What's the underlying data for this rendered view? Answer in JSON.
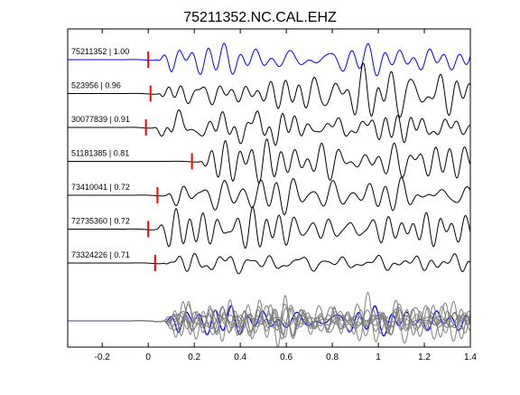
{
  "chart_data": {
    "type": "line",
    "title": "75211352.NC.CAL.EHZ",
    "xlim": [
      -0.35,
      1.4
    ],
    "xticks": [
      -0.2,
      0,
      0.2,
      0.4,
      0.6,
      0.8,
      1,
      1.2,
      1.4
    ],
    "xtick_labels": [
      "-0.2",
      "0",
      "0.2",
      "0.4",
      "0.6",
      "0.8",
      "1",
      "1.2",
      "1.4"
    ],
    "grid": false,
    "colors": {
      "master": "#0000ff",
      "trace": "#000000",
      "pick": "#ff0000",
      "stack": "#808080"
    },
    "traces": [
      {
        "label": "75211352 | 1.00",
        "pick_time": 0.0,
        "color": "blue"
      },
      {
        "label": "523956 | 0.96",
        "pick_time": 0.01,
        "color": "black"
      },
      {
        "label": "30077839 | 0.91",
        "pick_time": -0.01,
        "color": "black"
      },
      {
        "label": "51181385 | 0.81",
        "pick_time": 0.19,
        "color": "black"
      },
      {
        "label": "73410041 | 0.72",
        "pick_time": 0.04,
        "color": "black"
      },
      {
        "label": "72735360 | 0.72",
        "pick_time": 0.0,
        "color": "black"
      },
      {
        "label": "73324226 | 0.71",
        "pick_time": 0.03,
        "color": "black"
      }
    ],
    "stack": {
      "label": "",
      "onset_time": 0.07
    }
  }
}
